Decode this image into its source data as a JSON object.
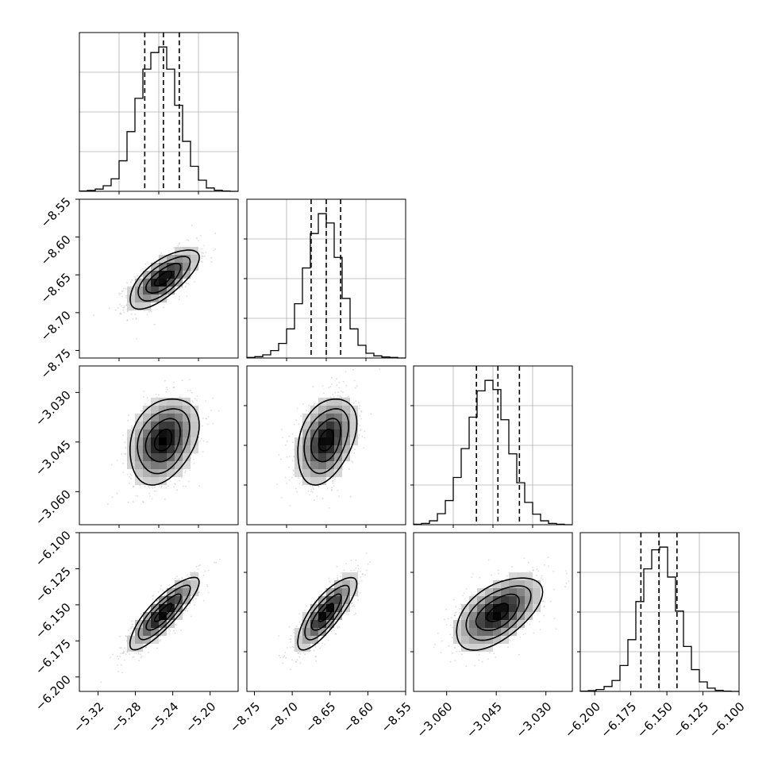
{
  "chart_data": {
    "type": "corner",
    "parameters": 4,
    "parameter_summary": [
      {
        "index": 0,
        "quantiles": [
          -5.27,
          -5.25,
          -5.233
        ],
        "range": [
          -5.34,
          -5.17
        ]
      },
      {
        "index": 1,
        "quantiles": [
          -8.675,
          -8.655,
          -8.636
        ],
        "range": [
          -8.76,
          -8.55
        ]
      },
      {
        "index": 2,
        "quantiles": [
          -3.051,
          -3.0445,
          -3.038
        ],
        "range": [
          -3.07,
          -3.022
        ]
      },
      {
        "index": 3,
        "quantiles": [
          -6.168,
          -6.1555,
          -6.143
        ],
        "range": [
          -6.21,
          -6.1
        ]
      }
    ],
    "histograms": [
      {
        "param": 0,
        "bin_start": -5.34,
        "bin_width": 0.0085,
        "counts": [
          1,
          3,
          8,
          20,
          45,
          110,
          215,
          335,
          440,
          500,
          520,
          440,
          310,
          180,
          90,
          40,
          12,
          4,
          1,
          0
        ]
      },
      {
        "param": 1,
        "bin_start": -8.76,
        "bin_width": 0.0105,
        "counts": [
          2,
          5,
          12,
          28,
          55,
          110,
          205,
          340,
          470,
          545,
          510,
          380,
          225,
          110,
          48,
          18,
          8,
          4,
          2,
          0
        ]
      },
      {
        "param": 2,
        "bin_start": -3.07,
        "bin_width": 0.0024,
        "counts": [
          2,
          5,
          15,
          42,
          92,
          180,
          290,
          410,
          510,
          550,
          515,
          400,
          270,
          160,
          85,
          40,
          15,
          5,
          2,
          0
        ]
      },
      {
        "param": 3,
        "bin_start": -6.21,
        "bin_width": 0.0055,
        "counts": [
          1,
          3,
          7,
          18,
          40,
          95,
          190,
          330,
          450,
          520,
          530,
          420,
          295,
          165,
          80,
          35,
          12,
          4,
          1,
          0
        ]
      }
    ],
    "pair_correlations": [
      {
        "x": 0,
        "y": 1,
        "rho": 0.7
      },
      {
        "x": 0,
        "y": 2,
        "rho": 0.3
      },
      {
        "x": 1,
        "y": 2,
        "rho": 0.35
      },
      {
        "x": 0,
        "y": 3,
        "rho": 0.85
      },
      {
        "x": 1,
        "y": 3,
        "rho": 0.8
      },
      {
        "x": 2,
        "y": 3,
        "rho": 0.55
      }
    ],
    "contour_levels_sigma": [
      0.5,
      1.0,
      1.5,
      2.0
    ],
    "x_axis_ticks": [
      [
        "−5.32",
        "−5.28",
        "−5.24",
        "−5.20"
      ],
      [
        "−8.75",
        "−8.70",
        "−8.65",
        "−8.60",
        "−8.55"
      ],
      [
        "−3.060",
        "−3.045",
        "−3.030"
      ],
      [
        "−6.200",
        "−6.175",
        "−6.150",
        "−6.125",
        "−6.100"
      ]
    ],
    "y_axis_ticks": {
      "row1": [
        "−8.55",
        "−8.60",
        "−8.65",
        "−8.70",
        "−8.75"
      ],
      "row2": [
        "−3.030",
        "−3.045",
        "−3.060"
      ],
      "row3": [
        "−6.100",
        "−6.125",
        "−6.150",
        "−6.175",
        "−6.200"
      ]
    },
    "grid": true,
    "colors": {
      "line": "#000000",
      "grid": "#b0b0b0",
      "scatter": "#9a9a9a"
    }
  }
}
